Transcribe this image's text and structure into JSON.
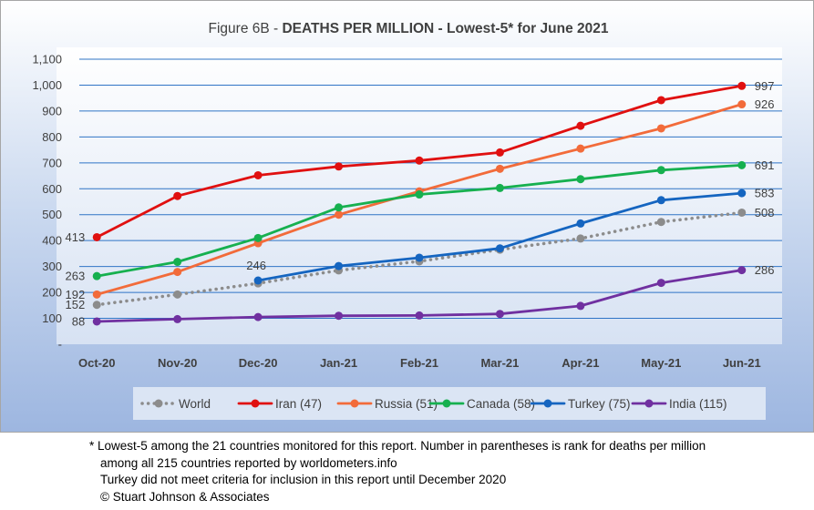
{
  "chart_data": {
    "type": "line",
    "title_prefix": "Figure 6B - ",
    "title_main": "DEATHS PER MILLION - Lowest-5* for June 2021",
    "categories": [
      "Oct-20",
      "Nov-20",
      "Dec-20",
      "Jan-21",
      "Feb-21",
      "Mar-21",
      "Apr-21",
      "May-21",
      "Jun-21"
    ],
    "y_ticks": [
      "-",
      "100",
      "200",
      "300",
      "400",
      "500",
      "600",
      "700",
      "800",
      "900",
      "1,000",
      "1,100"
    ],
    "ylim": [
      0,
      1100
    ],
    "grid": true,
    "legend_position": "bottom",
    "series": [
      {
        "name": "World",
        "color": "#8c8c8c",
        "dotted": true,
        "values": [
          152,
          192,
          235,
          285,
          320,
          365,
          408,
          472,
          508
        ],
        "labels": [
          {
            "index": 0,
            "text": "152"
          },
          {
            "index": 8,
            "text": "508"
          }
        ]
      },
      {
        "name": "Iran (47)",
        "color": "#e01010",
        "dotted": false,
        "values": [
          413,
          572,
          652,
          686,
          709,
          740,
          843,
          942,
          997
        ],
        "labels": [
          {
            "index": 0,
            "text": "413"
          },
          {
            "index": 8,
            "text": "997"
          }
        ]
      },
      {
        "name": "Russia (51)",
        "color": "#f26b3a",
        "dotted": false,
        "values": [
          192,
          279,
          390,
          500,
          590,
          677,
          755,
          833,
          926
        ],
        "labels": [
          {
            "index": 0,
            "text": "192"
          },
          {
            "index": 8,
            "text": "926"
          }
        ]
      },
      {
        "name": "Canada (58)",
        "color": "#16b04f",
        "dotted": false,
        "values": [
          263,
          318,
          410,
          528,
          578,
          603,
          637,
          672,
          691
        ],
        "labels": [
          {
            "index": 0,
            "text": "263"
          },
          {
            "index": 8,
            "text": "691"
          }
        ]
      },
      {
        "name": "Turkey (75)",
        "color": "#1565c0",
        "dotted": false,
        "start": 2,
        "values": [
          null,
          null,
          246,
          302,
          334,
          370,
          466,
          556,
          583
        ],
        "labels": [
          {
            "index": 2,
            "text": "246"
          },
          {
            "index": 8,
            "text": "583"
          }
        ]
      },
      {
        "name": "India (115)",
        "color": "#7030a0",
        "dotted": false,
        "values": [
          88,
          97,
          105,
          110,
          111,
          117,
          148,
          237,
          286
        ],
        "labels": [
          {
            "index": 0,
            "text": "88"
          },
          {
            "index": 8,
            "text": "286"
          }
        ]
      }
    ]
  },
  "footnote": {
    "line1": "* Lowest-5 among the 21 countries monitored for this report. Number in parentheses is rank for deaths per million",
    "line2": "among all 215 countries reported by worldometers.info",
    "line3": "Turkey did not meet criteria for inclusion in this report until December 2020",
    "line4": "© Stuart Johnson & Associates"
  }
}
